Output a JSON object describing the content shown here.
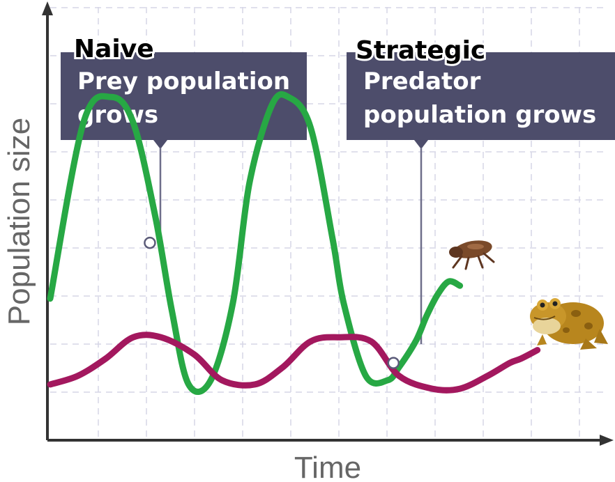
{
  "chart_data": {
    "type": "line",
    "title": "",
    "xlabel": "Time",
    "ylabel": "Population size",
    "grid": true,
    "xlim": [
      0,
      100
    ],
    "ylim": [
      0,
      100
    ],
    "series": [
      {
        "color": "#27a844",
        "x": [
          0,
          6,
          11,
          15,
          19,
          22,
          25,
          29,
          33,
          36,
          40,
          43,
          47,
          51,
          53,
          57,
          61,
          63,
          66,
          68,
          70,
          72,
          74
        ],
        "y": [
          33,
          74,
          80,
          74,
          52,
          30,
          13,
          14,
          32,
          60,
          78,
          80,
          73,
          47,
          32,
          15,
          14,
          17,
          23,
          29,
          34,
          37,
          36
        ]
      },
      {
        "color": "#a3185e",
        "x": [
          0,
          5,
          10,
          15,
          20,
          26,
          31,
          37,
          42,
          47,
          52,
          58,
          63,
          69,
          74,
          79,
          83,
          85,
          88
        ],
        "y": [
          13,
          15,
          19,
          24,
          24,
          20,
          14,
          13,
          17,
          23,
          24,
          23,
          15,
          12,
          12,
          15,
          18,
          19,
          21
        ]
      }
    ],
    "callouts": [
      {
        "heading": "Naive",
        "lines": [
          "Prey population",
          "grows"
        ],
        "point": [
          18,
          46
        ]
      },
      {
        "heading": "Strategic",
        "lines": [
          "Predator",
          "population grows"
        ],
        "point": [
          62,
          18
        ]
      }
    ],
    "icons": [
      "flea-icon",
      "toad-icon"
    ]
  }
}
